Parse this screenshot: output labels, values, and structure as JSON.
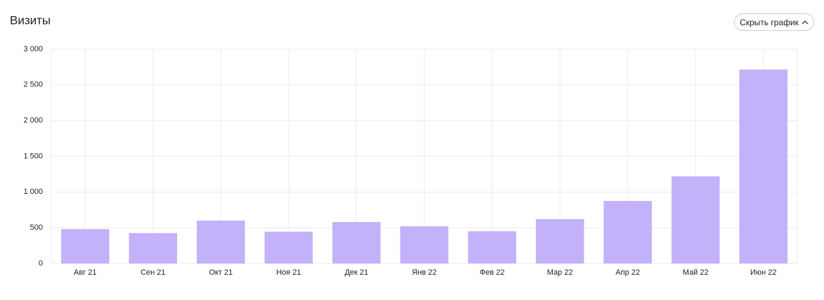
{
  "chart_data": {
    "type": "bar",
    "title": "Визиты",
    "categories": [
      "Авг 21",
      "Сен 21",
      "Окт 21",
      "Ноя 21",
      "Дек 21",
      "Янв 22",
      "Фев 22",
      "Мар 22",
      "Апр 22",
      "Май 22",
      "Июн 22"
    ],
    "values": [
      480,
      425,
      600,
      445,
      580,
      520,
      450,
      620,
      875,
      1220,
      2715
    ],
    "color": "#c3b1f9",
    "ylim": [
      0,
      3000
    ],
    "yticks": [
      0,
      500,
      {
        "value": 1000,
        "label": "1 000"
      },
      {
        "value": 1500,
        "label": "1 500"
      },
      {
        "value": 2000,
        "label": "2 000"
      },
      {
        "value": 2500,
        "label": "2 500"
      },
      {
        "value": 3000,
        "label": "3 000"
      }
    ],
    "grid": true
  },
  "controls": {
    "hide_chart_button": "Скрыть график"
  }
}
